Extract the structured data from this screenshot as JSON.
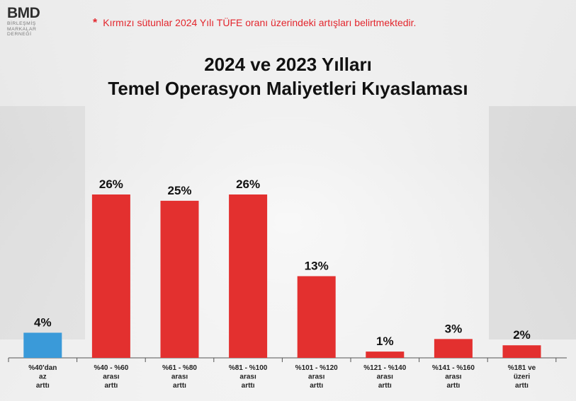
{
  "logo": {
    "mark": "BMD",
    "subtitle": "BİRLEŞMİŞ\nMARKALAR\nDERNEĞİ"
  },
  "note": {
    "star": "*",
    "text": "Kırmızı sütunlar 2024 Yılı TÜFE oranı üzerindeki artışları belirtmektedir."
  },
  "colors": {
    "red": "#e3302f",
    "blue": "#3a9ad9",
    "note_red": "#e3262d"
  },
  "chart_data": {
    "type": "bar",
    "title_lines": [
      "2024 ve 2023 Yılları",
      "Temel Operasyon Maliyetleri Kıyaslaması"
    ],
    "categories": [
      [
        "%40'dan",
        "az",
        "arttı"
      ],
      [
        "%40 - %60",
        "arası",
        "arttı"
      ],
      [
        "%61 - %80",
        "arası",
        "arttı"
      ],
      [
        "%81 - %100",
        "arası",
        "arttı"
      ],
      [
        "%101 - %120",
        "arası",
        "arttı"
      ],
      [
        "%121 - %140",
        "arası",
        "arttı"
      ],
      [
        "%141 - %160",
        "arası",
        "arttı"
      ],
      [
        "%181 ve",
        "üzeri",
        "arttı"
      ]
    ],
    "values": [
      4,
      26,
      25,
      26,
      13,
      1,
      3,
      2
    ],
    "value_labels": [
      "4%",
      "26%",
      "25%",
      "26%",
      "13%",
      "1%",
      "3%",
      "2%"
    ],
    "bar_colors": [
      "blue",
      "red",
      "red",
      "red",
      "red",
      "red",
      "red",
      "red"
    ],
    "ylim": [
      0,
      30
    ],
    "grid": false,
    "legend": "none"
  }
}
